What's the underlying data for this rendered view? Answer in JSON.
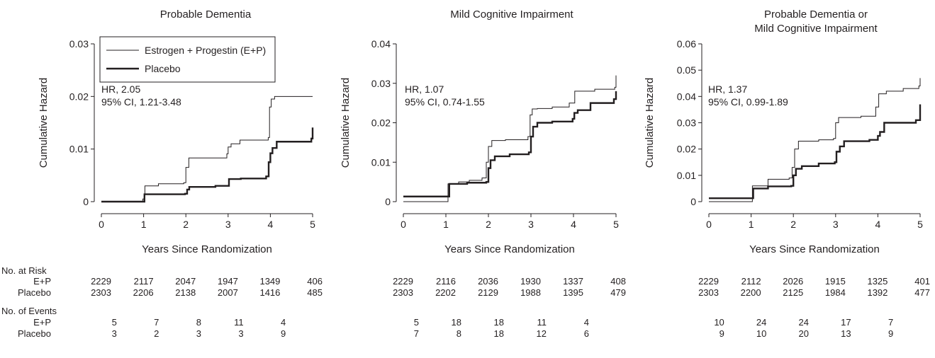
{
  "risk_header": "No. at Risk",
  "events_header": "No. of Events",
  "chart_data": [
    {
      "type": "line",
      "title": [
        "Probable Dementia"
      ],
      "xlabel": "Years Since Randomization",
      "ylabel": "Cumulative Hazard",
      "xlim": [
        0,
        5
      ],
      "ylim": [
        0,
        0.03
      ],
      "xticks": [
        "0",
        "1",
        "2",
        "3",
        "4",
        "5"
      ],
      "yticks": [
        [
          "0",
          0
        ],
        [
          "0.01",
          0.01
        ],
        [
          "0.02",
          0.02
        ],
        [
          "0.03",
          0.03
        ]
      ],
      "legend": {
        "placement": "top-left",
        "entries": [
          "Estrogen + Progestin (E+P)",
          "Placebo"
        ]
      },
      "annotation": [
        "HR, 2.05",
        "95% CI, 1.21-3.48"
      ],
      "series": [
        {
          "name": "Estrogen + Progestin (E+P)",
          "line": "thin",
          "x": [
            0,
            0.98,
            1.03,
            1.35,
            1.95,
            2.0,
            2.07,
            2.97,
            3.0,
            3.07,
            3.28,
            3.95,
            3.98,
            4.02,
            4.1,
            5.0
          ],
          "y": [
            0,
            0.0005,
            0.003,
            0.0034,
            0.0036,
            0.0065,
            0.0083,
            0.0091,
            0.0104,
            0.011,
            0.0117,
            0.0122,
            0.018,
            0.0195,
            0.02,
            0.02
          ]
        },
        {
          "name": "Placebo",
          "line": "thick",
          "x": [
            0,
            0.95,
            1.02,
            1.4,
            1.98,
            2.03,
            2.08,
            2.7,
            3.02,
            3.3,
            3.9,
            3.96,
            4.0,
            4.05,
            4.15,
            4.97,
            5.0
          ],
          "y": [
            0,
            0,
            0.0014,
            0.0014,
            0.0015,
            0.0023,
            0.0028,
            0.003,
            0.0043,
            0.0044,
            0.0048,
            0.0075,
            0.0092,
            0.0102,
            0.0114,
            0.012,
            0.0141
          ]
        }
      ],
      "at_risk": {
        "labels": [
          "E+P",
          "Placebo"
        ],
        "ep": [
          "2229",
          "2117",
          "2047",
          "1947",
          "1349",
          "406"
        ],
        "placebo": [
          "2303",
          "2206",
          "2138",
          "2007",
          "1416",
          "485"
        ]
      },
      "events": {
        "labels": [
          "E+P",
          "Placebo"
        ],
        "ep": [
          "5",
          "7",
          "8",
          "11",
          "4"
        ],
        "placebo": [
          "3",
          "2",
          "3",
          "3",
          "9"
        ]
      }
    },
    {
      "type": "line",
      "title": [
        "Mild Cognitive Impairment"
      ],
      "xlabel": "Years Since Randomization",
      "ylabel": "Cumulative Hazard",
      "xlim": [
        0,
        5
      ],
      "ylim": [
        0,
        0.04
      ],
      "xticks": [
        "0",
        "1",
        "2",
        "3",
        "4",
        "5"
      ],
      "yticks": [
        [
          "0",
          0
        ],
        [
          "0.01",
          0.01
        ],
        [
          "0.02",
          0.02
        ],
        [
          "0.03",
          0.03
        ],
        [
          "0.04",
          0.04
        ]
      ],
      "annotation": [
        "HR, 1.07",
        "95% CI, 0.74-1.55"
      ],
      "series": [
        {
          "name": "Estrogen + Progestin (E+P)",
          "line": "thin",
          "x": [
            0,
            0.98,
            1.05,
            1.3,
            1.55,
            1.85,
            1.95,
            2.0,
            2.08,
            2.4,
            2.93,
            2.98,
            3.03,
            3.15,
            3.5,
            3.9,
            4.03,
            4.5,
            4.97,
            5.0
          ],
          "y": [
            0,
            0,
            0.0045,
            0.005,
            0.0054,
            0.006,
            0.01,
            0.014,
            0.0155,
            0.0157,
            0.0165,
            0.022,
            0.0235,
            0.0236,
            0.024,
            0.025,
            0.028,
            0.0285,
            0.029,
            0.032
          ]
        },
        {
          "name": "Placebo",
          "line": "thick",
          "x": [
            0,
            1.0,
            1.08,
            1.5,
            1.95,
            2.0,
            2.05,
            2.15,
            2.5,
            2.95,
            3.0,
            3.05,
            3.15,
            3.5,
            3.98,
            4.02,
            4.1,
            4.4,
            4.95,
            5.0
          ],
          "y": [
            0.0013,
            0.0013,
            0.0045,
            0.0048,
            0.005,
            0.0085,
            0.0105,
            0.0115,
            0.012,
            0.0125,
            0.0165,
            0.019,
            0.02,
            0.0203,
            0.021,
            0.0225,
            0.0232,
            0.025,
            0.026,
            0.028
          ]
        }
      ],
      "at_risk": {
        "labels": [
          "E+P",
          "Placebo"
        ],
        "ep": [
          "2229",
          "2116",
          "2036",
          "1930",
          "1337",
          "408"
        ],
        "placebo": [
          "2303",
          "2202",
          "2129",
          "1988",
          "1395",
          "479"
        ]
      },
      "events": {
        "labels": [
          "E+P",
          "Placebo"
        ],
        "ep": [
          "5",
          "18",
          "18",
          "11",
          "4"
        ],
        "placebo": [
          "7",
          "8",
          "18",
          "12",
          "6"
        ]
      }
    },
    {
      "type": "line",
      "title": [
        "Probable Dementia or",
        "Mild Cognitive Impairment"
      ],
      "xlabel": "Years Since Randomization",
      "ylabel": "Cumulative Hazard",
      "xlim": [
        0,
        5
      ],
      "ylim": [
        0,
        0.06
      ],
      "xticks": [
        "0",
        "1",
        "2",
        "3",
        "4",
        "5"
      ],
      "yticks": [
        [
          "0",
          0
        ],
        [
          "0.01",
          0.01
        ],
        [
          "0.02",
          0.02
        ],
        [
          "0.03",
          0.03
        ],
        [
          "0.04",
          0.04
        ],
        [
          "0.05",
          0.05
        ],
        [
          "0.06",
          0.06
        ]
      ],
      "annotation": [
        "HR, 1.37",
        "95% CI, 0.99-1.89"
      ],
      "series": [
        {
          "name": "Estrogen + Progestin (E+P)",
          "line": "thin",
          "x": [
            0,
            0.97,
            1.03,
            1.4,
            1.9,
            1.97,
            2.03,
            2.12,
            2.6,
            2.95,
            3.0,
            3.07,
            3.6,
            3.95,
            4.02,
            4.2,
            4.6,
            4.97,
            5.0
          ],
          "y": [
            0,
            0,
            0.006,
            0.0085,
            0.009,
            0.013,
            0.02,
            0.023,
            0.0235,
            0.024,
            0.03,
            0.032,
            0.0325,
            0.036,
            0.041,
            0.042,
            0.043,
            0.044,
            0.047
          ]
        },
        {
          "name": "Placebo",
          "line": "thick",
          "x": [
            0,
            0.98,
            1.05,
            1.4,
            1.95,
            2.0,
            2.06,
            2.2,
            2.6,
            2.98,
            3.02,
            3.1,
            3.2,
            3.8,
            4.0,
            4.05,
            4.15,
            4.9,
            5.0
          ],
          "y": [
            0.0013,
            0.0013,
            0.005,
            0.0058,
            0.006,
            0.01,
            0.0125,
            0.0135,
            0.0145,
            0.015,
            0.019,
            0.021,
            0.023,
            0.0235,
            0.025,
            0.0265,
            0.03,
            0.031,
            0.037
          ]
        }
      ],
      "at_risk": {
        "labels": [
          "E+P",
          "Placebo"
        ],
        "ep": [
          "2229",
          "2112",
          "2026",
          "1915",
          "1325",
          "401"
        ],
        "placebo": [
          "2303",
          "2200",
          "2125",
          "1984",
          "1392",
          "477"
        ]
      },
      "events": {
        "labels": [
          "E+P",
          "Placebo"
        ],
        "ep": [
          "10",
          "24",
          "24",
          "17",
          "7"
        ],
        "placebo": [
          "9",
          "10",
          "20",
          "13",
          "9"
        ]
      }
    }
  ]
}
